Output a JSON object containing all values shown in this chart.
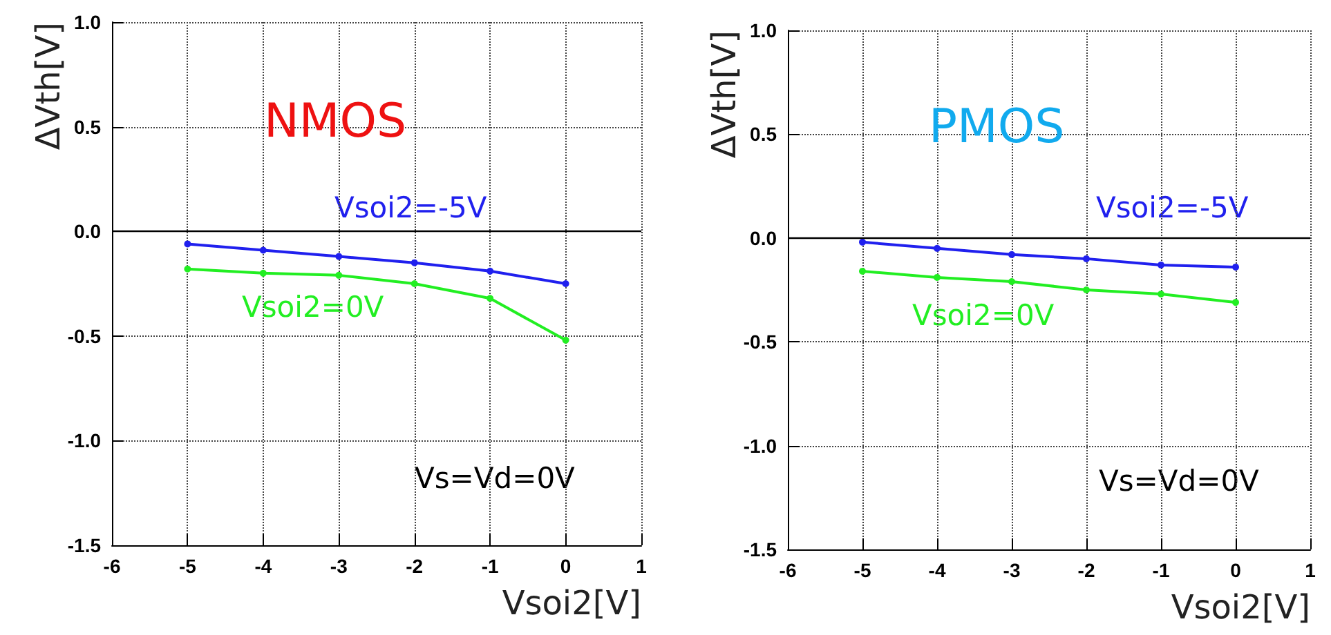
{
  "chart_data": [
    {
      "type": "line",
      "title": "NMOS",
      "xlabel": "Vsoi2[V]",
      "ylabel": "ΔVth[V]",
      "x": [
        -5,
        -4,
        -3,
        -2,
        -1,
        0
      ],
      "series": [
        {
          "name": "Vsoi2=-5V",
          "color": "#2020ee",
          "values": [
            -0.06,
            -0.09,
            -0.12,
            -0.15,
            -0.19,
            -0.25
          ]
        },
        {
          "name": "Vsoi2=0V",
          "color": "#22ee22",
          "values": [
            -0.18,
            -0.2,
            -0.21,
            -0.25,
            -0.32,
            -0.52
          ]
        }
      ],
      "annotations": [
        "Vs=Vd=0V"
      ],
      "xlim": [
        -6,
        1
      ],
      "xticks": [
        -6,
        -5,
        -4,
        -3,
        -2,
        -1,
        0,
        1
      ],
      "ylim": [
        -1.5,
        1
      ],
      "yticks": [
        {
          "value": -1.5,
          "label": "-1.5"
        },
        {
          "value": -1,
          "label": "-1.0"
        },
        {
          "value": -0.5,
          "label": "-0.5"
        },
        {
          "value": 0,
          "label": "0.0"
        },
        {
          "value": 0.5,
          "label": "0.5"
        },
        {
          "value": 1,
          "label": "1.0"
        }
      ],
      "ref_lines": [
        {
          "axis": "y",
          "value": 0,
          "label": null,
          "color": "#000000"
        }
      ],
      "grid": true,
      "legend": false,
      "marker": "circle",
      "line_style": "solid"
    },
    {
      "type": "line",
      "title": "PMOS",
      "xlabel": "Vsoi2[V]",
      "ylabel": "ΔVth[V]",
      "x": [
        -5,
        -4,
        -3,
        -2,
        -1,
        0
      ],
      "series": [
        {
          "name": "Vsoi2=-5V",
          "color": "#2020ee",
          "values": [
            -0.02,
            -0.05,
            -0.08,
            -0.1,
            -0.13,
            -0.14
          ]
        },
        {
          "name": "Vsoi2=0V",
          "color": "#22ee22",
          "values": [
            -0.16,
            -0.19,
            -0.21,
            -0.25,
            -0.27,
            -0.31
          ]
        }
      ],
      "annotations": [
        "Vs=Vd=0V"
      ],
      "xlim": [
        -6,
        1
      ],
      "xticks": [
        -6,
        -5,
        -4,
        -3,
        -2,
        -1,
        0,
        1
      ],
      "ylim": [
        -1.5,
        1
      ],
      "yticks": [
        {
          "value": -1.5,
          "label": "-1.5"
        },
        {
          "value": -1,
          "label": "-1.0"
        },
        {
          "value": -0.5,
          "label": "-0.5"
        },
        {
          "value": 0,
          "label": "0.0"
        },
        {
          "value": 0.5,
          "label": "0.5"
        },
        {
          "value": 1,
          "label": "1.0"
        }
      ],
      "ref_lines": [
        {
          "axis": "y",
          "value": 0,
          "label": null,
          "color": "#000000"
        }
      ],
      "grid": true,
      "legend": false,
      "marker": "circle",
      "line_style": "solid"
    }
  ]
}
